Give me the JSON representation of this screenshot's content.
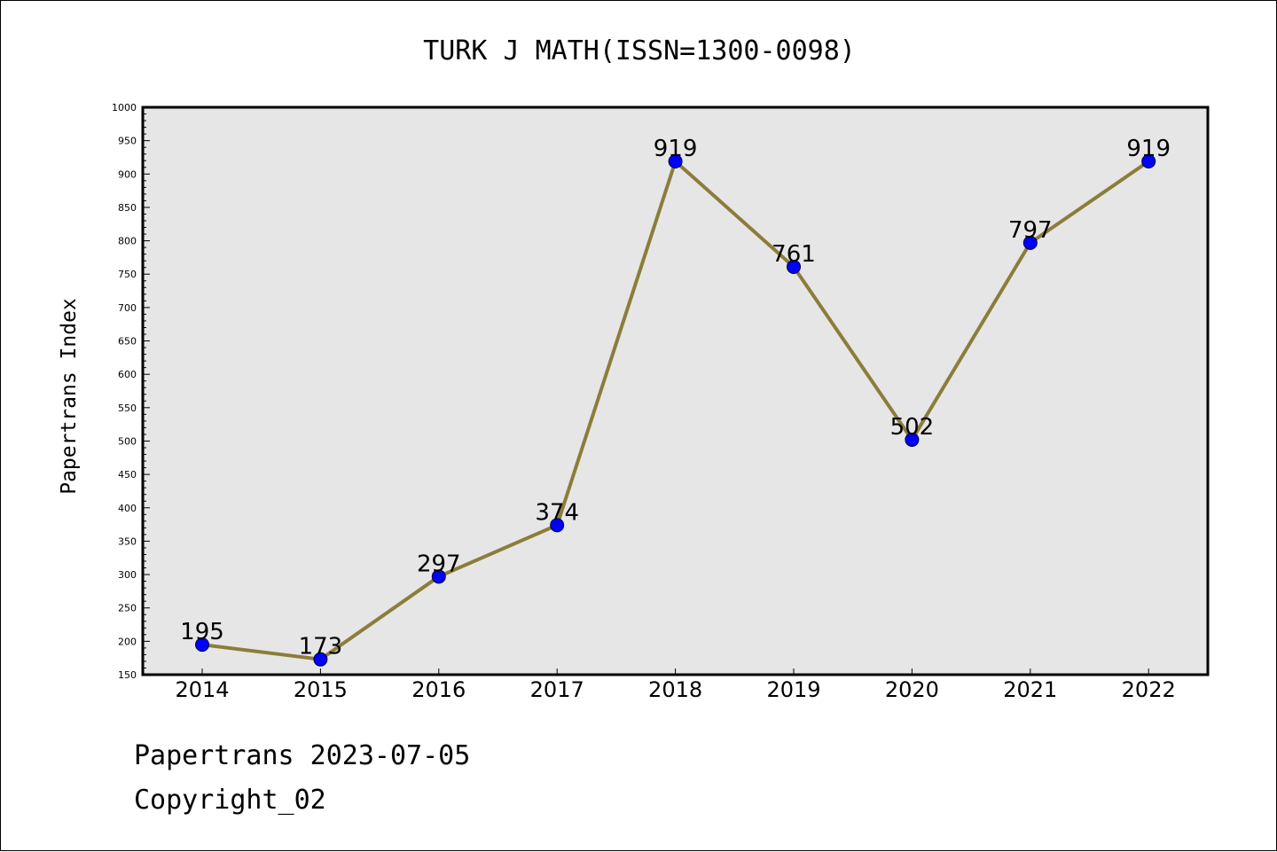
{
  "chart_data": {
    "type": "line",
    "title": "TURK J MATH(ISSN=1300-0098)",
    "xlabel": "",
    "ylabel": "Papertrans Index",
    "categories": [
      "2014",
      "2015",
      "2016",
      "2017",
      "2018",
      "2019",
      "2020",
      "2021",
      "2022"
    ],
    "series": [
      {
        "values": [
          195,
          173,
          297,
          374,
          919,
          761,
          502,
          797,
          919
        ]
      }
    ],
    "ylim": [
      150,
      1000
    ],
    "y_ticks": [
      150,
      200,
      250,
      300,
      350,
      400,
      450,
      500,
      550,
      600,
      650,
      700,
      750,
      800,
      850,
      900,
      950,
      1000
    ],
    "data_labels": true,
    "grid": false,
    "legend": "none",
    "colors": {
      "line": "#8b7d3a",
      "marker": "#0000ff",
      "plot_background": "#e6e6e6"
    }
  },
  "footer": {
    "line1": "Papertrans 2023-07-05",
    "line2": "Copyright_02"
  }
}
